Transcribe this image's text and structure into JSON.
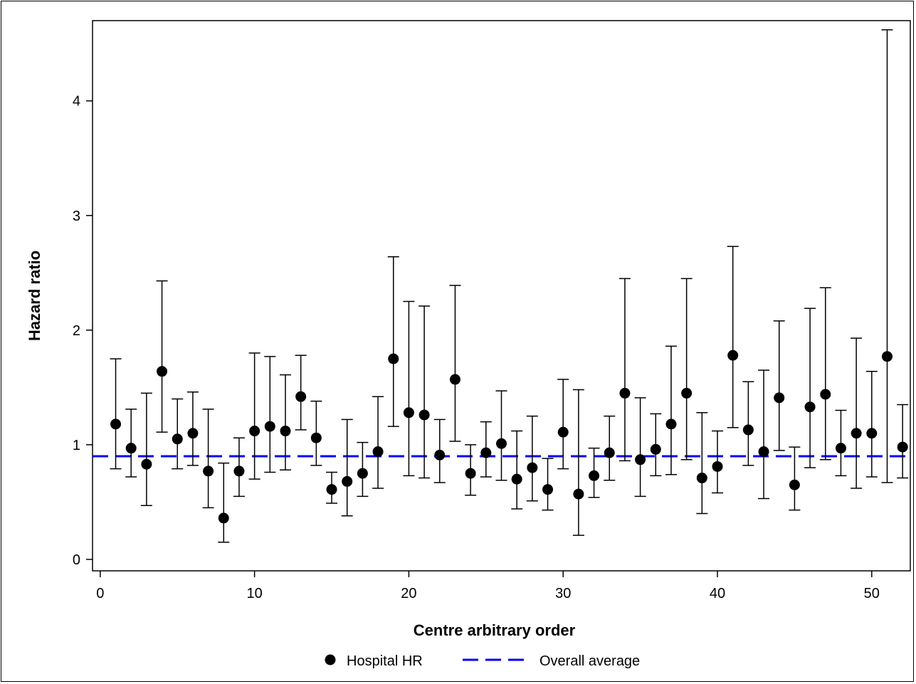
{
  "chart_data": {
    "type": "scatter",
    "xlabel": "Centre arbitrary order",
    "ylabel": "Hazard ratio",
    "xlim": [
      -0.5,
      52.5
    ],
    "ylim": [
      -0.1,
      4.7
    ],
    "xticks": [
      0,
      10,
      20,
      30,
      40,
      50
    ],
    "yticks": [
      0,
      1,
      2,
      3,
      4
    ],
    "grid": false,
    "reference_line": {
      "name": "Overall average",
      "y": 0.9,
      "color": "#0000ff",
      "style": "dashed"
    },
    "series": [
      {
        "name": "Hospital HR",
        "color": "#000000",
        "marker": "filled-circle",
        "x": [
          1,
          2,
          3,
          4,
          5,
          6,
          7,
          8,
          9,
          10,
          11,
          12,
          13,
          14,
          15,
          16,
          17,
          18,
          19,
          20,
          21,
          22,
          23,
          24,
          25,
          26,
          27,
          28,
          29,
          30,
          31,
          32,
          33,
          34,
          35,
          36,
          37,
          38,
          39,
          40,
          41,
          42,
          43,
          44,
          45,
          46,
          47,
          48,
          49,
          50,
          51,
          52
        ],
        "y": [
          1.18,
          0.97,
          0.83,
          1.64,
          1.05,
          1.1,
          0.77,
          0.36,
          0.77,
          1.12,
          1.16,
          1.12,
          1.42,
          1.06,
          0.61,
          0.68,
          0.75,
          0.94,
          1.75,
          1.28,
          1.26,
          0.91,
          1.57,
          0.75,
          0.93,
          1.01,
          0.7,
          0.8,
          0.61,
          1.11,
          0.57,
          0.73,
          0.93,
          1.45,
          0.87,
          0.96,
          1.18,
          1.45,
          0.71,
          0.81,
          1.78,
          1.13,
          0.94,
          1.41,
          0.65,
          1.33,
          1.44,
          0.97,
          1.1,
          1.1,
          1.77,
          0.98
        ],
        "lower": [
          0.79,
          0.72,
          0.47,
          1.11,
          0.79,
          0.82,
          0.45,
          0.15,
          0.55,
          0.7,
          0.76,
          0.78,
          1.13,
          0.82,
          0.49,
          0.38,
          0.55,
          0.62,
          1.16,
          0.73,
          0.71,
          0.67,
          1.03,
          0.56,
          0.72,
          0.69,
          0.44,
          0.51,
          0.43,
          0.79,
          0.21,
          0.54,
          0.69,
          0.86,
          0.55,
          0.73,
          0.74,
          0.87,
          0.4,
          0.58,
          1.15,
          0.82,
          0.53,
          0.95,
          0.43,
          0.8,
          0.87,
          0.73,
          0.62,
          0.72,
          0.67,
          0.71
        ],
        "upper": [
          1.75,
          1.31,
          1.45,
          2.43,
          1.4,
          1.46,
          1.31,
          0.84,
          1.06,
          1.8,
          1.77,
          1.61,
          1.78,
          1.38,
          0.76,
          1.22,
          1.02,
          1.42,
          2.64,
          2.25,
          2.21,
          1.22,
          2.39,
          1.0,
          1.2,
          1.47,
          1.12,
          1.25,
          0.88,
          1.57,
          1.48,
          0.97,
          1.25,
          2.45,
          1.41,
          1.27,
          1.86,
          2.45,
          1.28,
          1.12,
          2.73,
          1.55,
          1.65,
          2.08,
          0.98,
          2.19,
          2.37,
          1.3,
          1.93,
          1.64,
          4.62,
          1.35
        ]
      }
    ],
    "legend": {
      "position": "bottom",
      "items": [
        {
          "label": "Hospital HR",
          "symbol": "filled-circle",
          "color": "#000000"
        },
        {
          "label": "Overall average",
          "symbol": "dashed-line",
          "color": "#0000ff"
        }
      ]
    }
  }
}
